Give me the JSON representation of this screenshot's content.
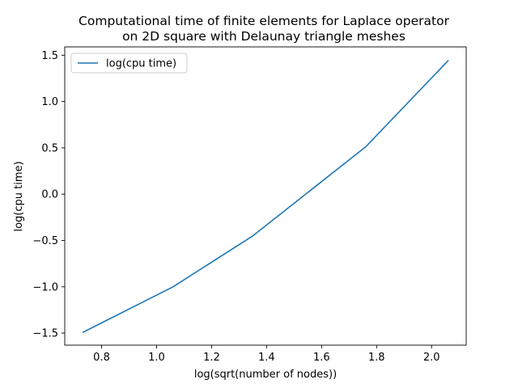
{
  "chart_data": {
    "type": "line",
    "title_lines": [
      "Computational time of finite elements for Laplace operator",
      "on 2D square with Delaunay triangle meshes"
    ],
    "xlabel": "log(sqrt(number of nodes))",
    "ylabel": "log(cpu time)",
    "xlim": [
      0.666,
      2.126
    ],
    "ylim": [
      -1.63,
      1.59
    ],
    "xticks": [
      0.8,
      1.0,
      1.2,
      1.4,
      1.6,
      1.8,
      2.0
    ],
    "xtick_labels": [
      "0.8",
      "1.0",
      "1.2",
      "1.4",
      "1.6",
      "1.8",
      "2.0"
    ],
    "yticks": [
      -1.5,
      -1.0,
      -0.5,
      0.0,
      0.5,
      1.0,
      1.5
    ],
    "ytick_labels": [
      "−1.5",
      "−1.0",
      "−0.5",
      "0.0",
      "0.5",
      "1.0",
      "1.5"
    ],
    "grid": false,
    "legend_position": "top-left",
    "series": [
      {
        "name": "log(cpu time)",
        "color": "#1f77b4",
        "x": [
          0.733,
          1.06,
          1.35,
          1.76,
          2.06
        ],
        "y": [
          -1.49,
          -1.0,
          -0.45,
          0.51,
          1.44
        ]
      }
    ]
  }
}
